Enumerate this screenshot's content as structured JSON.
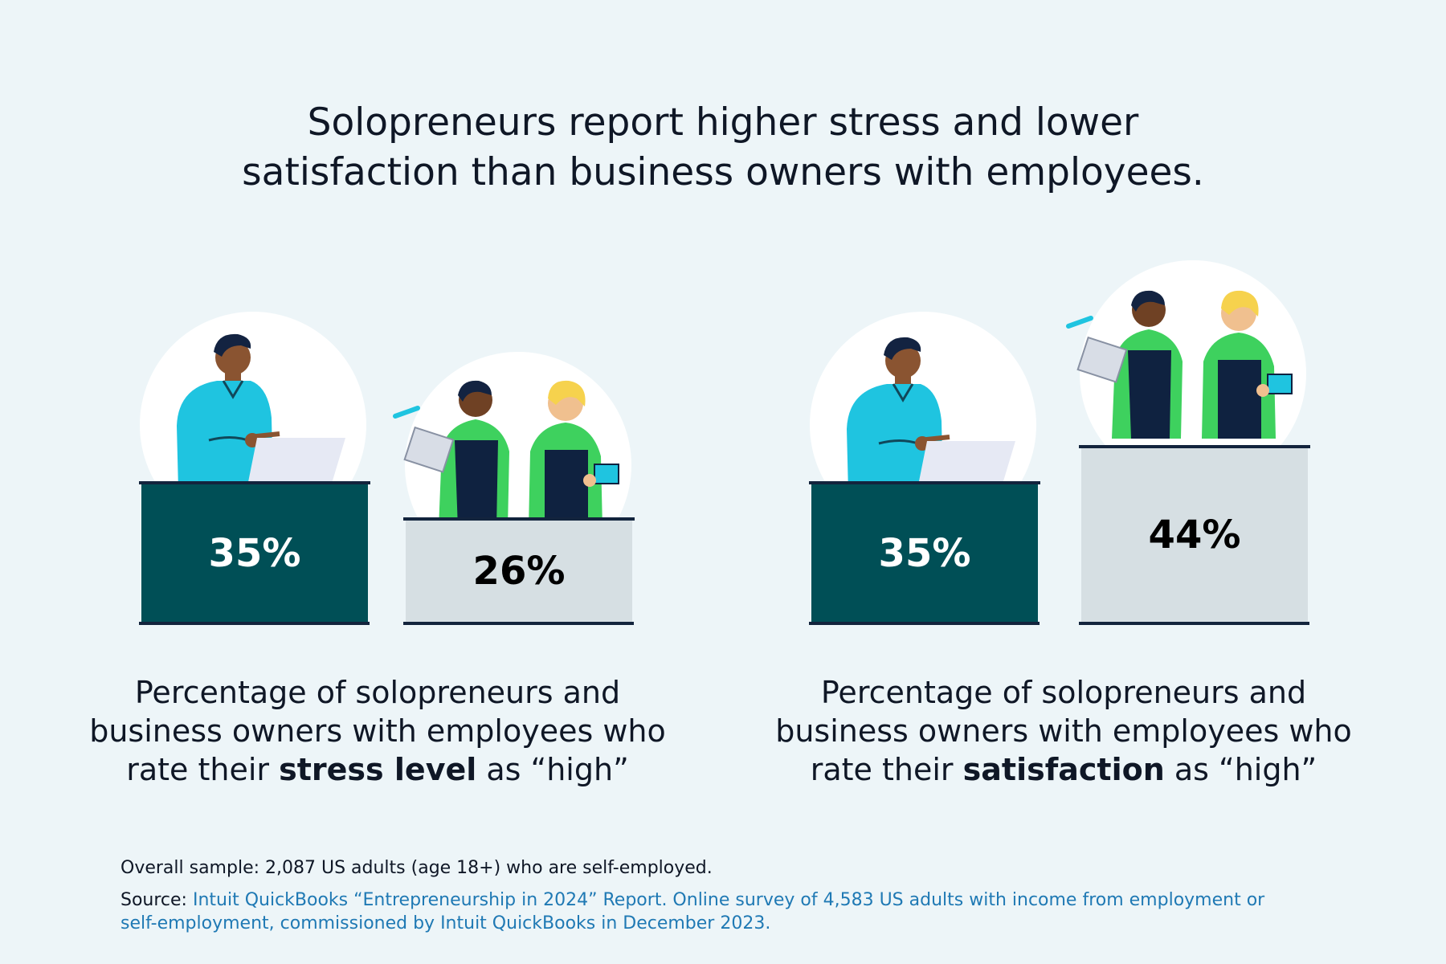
{
  "headline": {
    "line1": "Solopreneurs report higher stress and lower",
    "line2": "satisfaction than business owners with employees."
  },
  "colors": {
    "background": "#edf5f8",
    "solopreneur_box": "#004f56",
    "employees_box": "#d6dfe3",
    "shirt_solo": "#1fc4e0",
    "shirt_team": "#3ed15e",
    "apron": "#0f2240",
    "link": "#1f79b4"
  },
  "chart_data": [
    {
      "type": "bar",
      "categories": [
        "Solopreneurs",
        "Business owners with employees"
      ],
      "values": [
        35,
        26
      ],
      "value_labels": [
        "35%",
        "26%"
      ],
      "unit": "%",
      "caption": {
        "pre": "Percentage of solopreneurs and business owners with employees who rate their",
        "bold": "stress level",
        "post": "as “high”"
      }
    },
    {
      "type": "bar",
      "categories": [
        "Solopreneurs",
        "Business owners with employees"
      ],
      "values": [
        35,
        44
      ],
      "value_labels": [
        "35%",
        "44%"
      ],
      "unit": "%",
      "caption": {
        "pre": "Percentage of solopreneurs and business owners with employees who rate their",
        "bold": "satisfaction",
        "post": "as “high”"
      }
    }
  ],
  "footnotes": {
    "sample": "Overall sample: 2,087 US adults (age 18+) who are self-employed.",
    "source_label": "Source: ",
    "source_text": "Intuit QuickBooks “Entrepreneurship in 2024” Report. Online survey of 4,583 US adults with income from employment or self-employment, commissioned by Intuit QuickBooks in December 2023."
  },
  "icons": [
    "solopreneur-laptop-illustration",
    "team-workers-illustration"
  ]
}
